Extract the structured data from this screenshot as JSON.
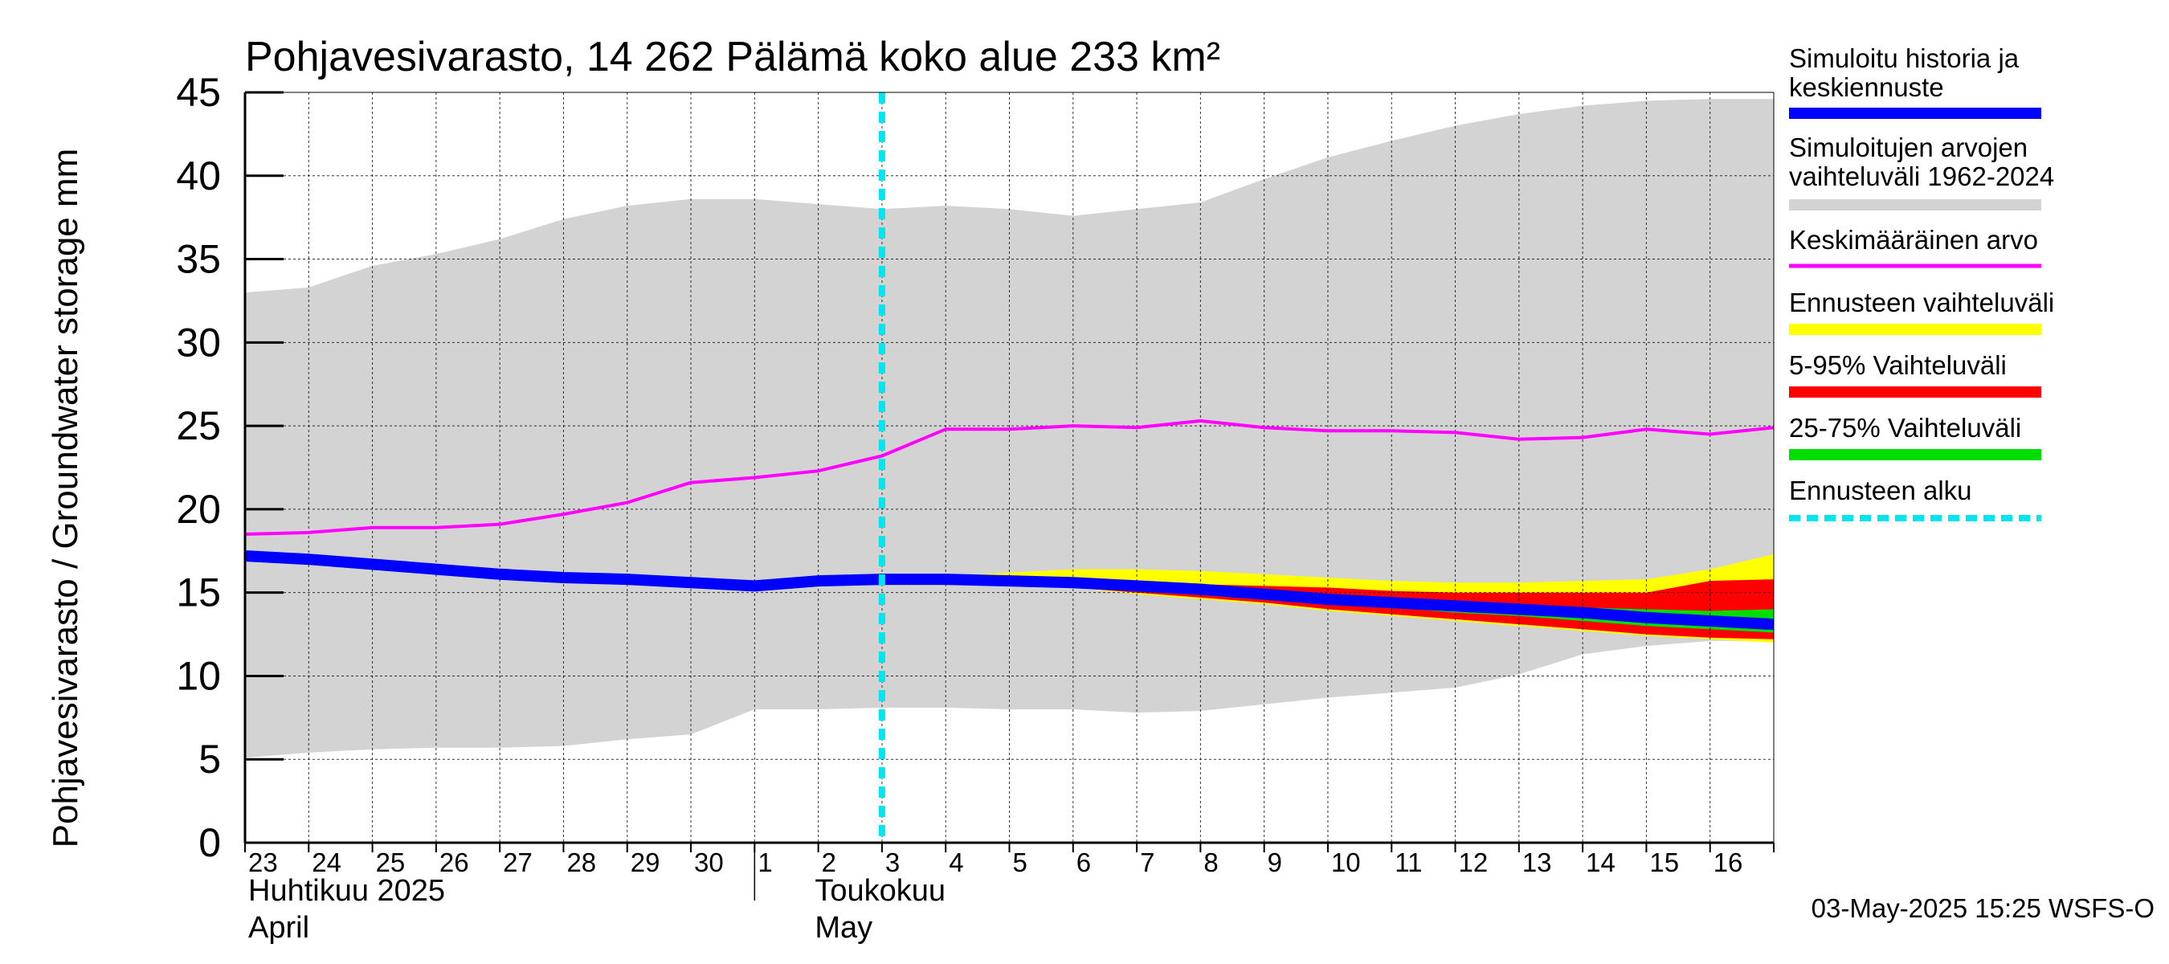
{
  "chart_data": {
    "type": "area",
    "title": "Pohjavesivarasto, 14 262 Pälämä koko alue 233 km²",
    "ylabel": "Pohjavesivarasto / Groundwater storage   mm",
    "ylim": [
      0,
      45
    ],
    "yticks": [
      0,
      5,
      10,
      15,
      20,
      25,
      30,
      35,
      40,
      45
    ],
    "grid": true,
    "xlim": [
      0,
      24
    ],
    "xticks": [
      "23",
      "24",
      "25",
      "26",
      "27",
      "28",
      "29",
      "30",
      "1",
      "2",
      "3",
      "4",
      "5",
      "6",
      "7",
      "8",
      "9",
      "10",
      "11",
      "12",
      "13",
      "14",
      "15",
      "16"
    ],
    "month_labels": [
      {
        "fi": "Huhtikuu  2025",
        "en": "April"
      },
      {
        "fi": "Toukokuu",
        "en": "May"
      }
    ],
    "month_boundary_index": 8,
    "forecast_start_x": 10,
    "footer": "03-May-2025 15:25 WSFS-O",
    "legend_position": "right",
    "legend": [
      {
        "label": "Simuloitu historia ja\nkeskiennuste",
        "color": "#0000ff",
        "style": "solid"
      },
      {
        "label": "Simuloitujen arvojen\nvaihteluväli 1962-2024",
        "color": "#d3d3d3",
        "style": "solid"
      },
      {
        "label": "Keskimääräinen arvo",
        "color": "#ff00ff",
        "style": "solid"
      },
      {
        "label": "Ennusteen vaihteluväli",
        "color": "#ffff00",
        "style": "solid"
      },
      {
        "label": "5-95% Vaihteluväli",
        "color": "#ff0000",
        "style": "solid"
      },
      {
        "label": "25-75% Vaihteluväli",
        "color": "#00dd00",
        "style": "solid"
      },
      {
        "label": "Ennusteen alku",
        "color": "#00e5ee",
        "style": "dashed"
      }
    ],
    "range_band": {
      "x": [
        0,
        1,
        2,
        3,
        4,
        5,
        6,
        7,
        8,
        9,
        10,
        11,
        12,
        13,
        14,
        15,
        16,
        17,
        18,
        19,
        20,
        21,
        22,
        23,
        24
      ],
      "upper": [
        33.0,
        33.3,
        34.6,
        35.3,
        36.2,
        37.4,
        38.2,
        38.6,
        38.6,
        38.3,
        38.0,
        38.2,
        38.0,
        37.6,
        38.0,
        38.4,
        39.8,
        41.1,
        42.1,
        43.0,
        43.7,
        44.2,
        44.5,
        44.6,
        44.6
      ],
      "lower": [
        5.1,
        5.4,
        5.6,
        5.7,
        5.7,
        5.8,
        6.2,
        6.5,
        8.0,
        8.0,
        8.1,
        8.1,
        8.0,
        8.0,
        7.8,
        7.9,
        8.3,
        8.7,
        9.0,
        9.3,
        10.1,
        11.3,
        11.8,
        12.1,
        12.1
      ]
    },
    "series": [
      {
        "name": "Keskimääräinen arvo",
        "color": "#ff00ff",
        "x": [
          0,
          1,
          2,
          3,
          4,
          5,
          6,
          7,
          8,
          9,
          10,
          11,
          12,
          13,
          14,
          15,
          16,
          17,
          18,
          19,
          20,
          21,
          22,
          23,
          24
        ],
        "values": [
          18.5,
          18.6,
          18.9,
          18.9,
          19.1,
          19.7,
          20.4,
          21.6,
          21.9,
          22.3,
          23.2,
          24.8,
          24.8,
          25.0,
          24.9,
          25.3,
          24.9,
          24.7,
          24.7,
          24.6,
          24.2,
          24.3,
          24.8,
          24.5,
          24.9
        ]
      },
      {
        "name": "Simuloitu historia ja keskiennuste",
        "color": "#0000ff",
        "x": [
          0,
          1,
          2,
          3,
          4,
          5,
          6,
          7,
          8,
          9,
          10,
          11,
          12,
          13,
          14,
          15,
          16,
          17,
          18,
          19,
          20,
          21,
          22,
          23,
          24
        ],
        "values": [
          17.2,
          17.0,
          16.7,
          16.4,
          16.1,
          15.9,
          15.8,
          15.6,
          15.4,
          15.7,
          15.8,
          15.8,
          15.7,
          15.6,
          15.4,
          15.2,
          14.9,
          14.6,
          14.4,
          14.2,
          14.0,
          13.8,
          13.5,
          13.3,
          13.1
        ]
      }
    ],
    "forecast_bands": {
      "x": [
        10,
        11,
        12,
        13,
        14,
        15,
        16,
        17,
        18,
        19,
        20,
        21,
        22,
        23,
        24
      ],
      "yellow_upper": [
        15.8,
        16.0,
        16.2,
        16.4,
        16.4,
        16.3,
        16.1,
        15.9,
        15.7,
        15.6,
        15.6,
        15.7,
        15.8,
        16.4,
        17.3
      ],
      "red_upper": [
        15.8,
        15.8,
        15.8,
        15.7,
        15.6,
        15.5,
        15.4,
        15.3,
        15.1,
        15.0,
        15.0,
        15.0,
        15.0,
        15.7,
        15.8
      ],
      "green_upper": [
        15.8,
        15.8,
        15.7,
        15.6,
        15.5,
        15.3,
        15.0,
        14.8,
        14.6,
        14.4,
        14.2,
        14.1,
        14.0,
        13.9,
        14.0
      ],
      "green_lower": [
        15.8,
        15.7,
        15.6,
        15.5,
        15.2,
        15.0,
        14.7,
        14.4,
        14.1,
        13.8,
        13.6,
        13.3,
        13.0,
        12.8,
        12.6
      ],
      "red_lower": [
        15.8,
        15.7,
        15.5,
        15.3,
        15.0,
        14.7,
        14.4,
        14.0,
        13.7,
        13.4,
        13.1,
        12.8,
        12.5,
        12.3,
        12.2
      ],
      "yellow_lower": [
        15.8,
        15.7,
        15.5,
        15.3,
        14.9,
        14.6,
        14.3,
        13.9,
        13.6,
        13.3,
        13.0,
        12.7,
        12.4,
        12.2,
        12.0
      ]
    }
  }
}
